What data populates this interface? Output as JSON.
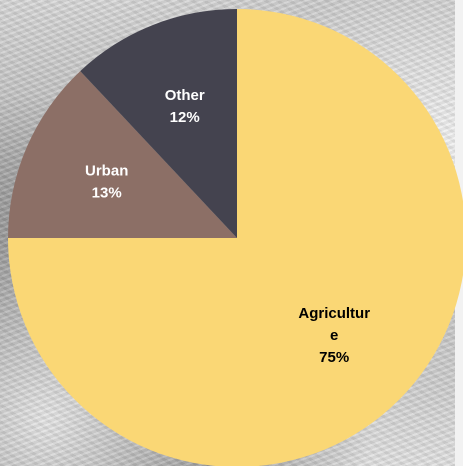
{
  "chart_data": {
    "type": "pie",
    "title": "",
    "start_angle_deg": 0,
    "direction": "clockwise",
    "slices": [
      {
        "label": "Agriculture",
        "label_lines": [
          "Agricultur",
          "e"
        ],
        "value": 75,
        "display": "75%",
        "color": "#fad775",
        "text_color": "#000000"
      },
      {
        "label": "Urban",
        "label_lines": [
          "Urban"
        ],
        "value": 13,
        "display": "13%",
        "color": "#8c6f66",
        "text_color": "#ffffff"
      },
      {
        "label": "Other",
        "label_lines": [
          "Other"
        ],
        "value": 12,
        "display": "12%",
        "color": "#44434f",
        "text_color": "#ffffff"
      }
    ]
  }
}
